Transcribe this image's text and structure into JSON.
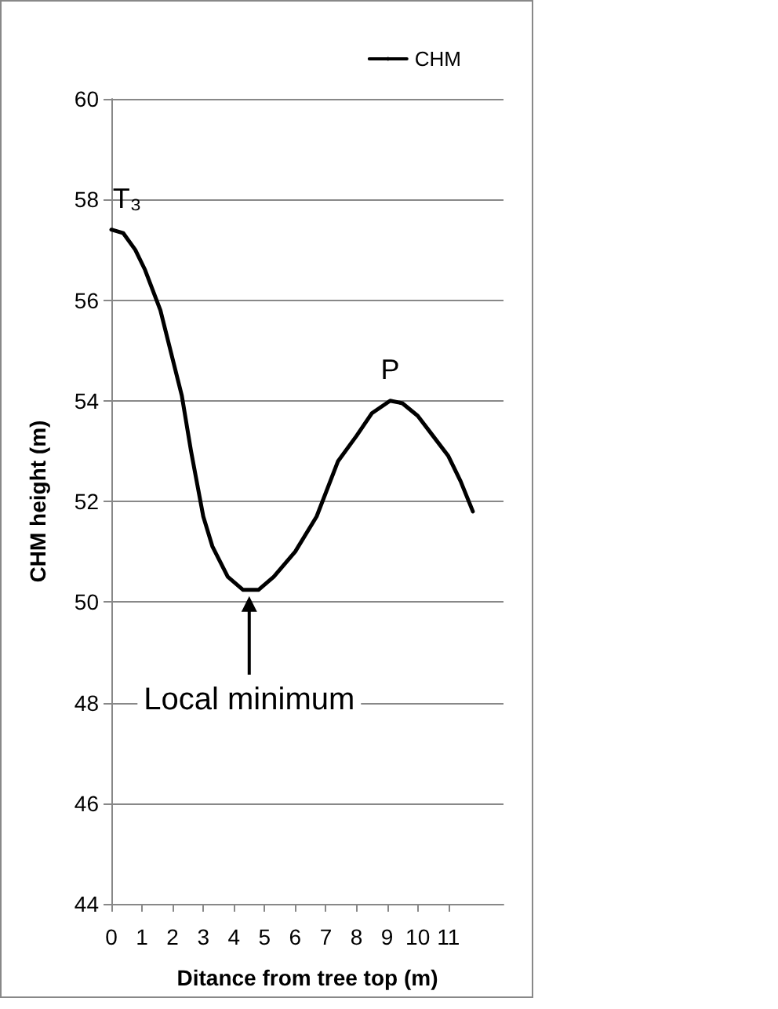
{
  "chart_data": {
    "type": "line",
    "xlabel": "Ditance from tree top (m)",
    "ylabel": "CHM height (m)",
    "x": [
      0,
      0.39,
      0.78,
      1.1,
      1.6,
      2.3,
      2.6,
      3.0,
      3.3,
      3.8,
      4.3,
      4.8,
      5.3,
      6.0,
      6.7,
      7.4,
      8.0,
      8.5,
      9.1,
      9.5,
      10.0,
      10.5,
      11.0,
      11.4,
      11.8
    ],
    "series": [
      {
        "name": "CHM",
        "color": "#000000",
        "values": [
          57.4,
          57.33,
          57.0,
          56.6,
          55.8,
          54.1,
          53.0,
          51.7,
          51.1,
          50.5,
          50.24,
          50.24,
          50.5,
          51.0,
          51.7,
          52.8,
          53.3,
          53.75,
          54.0,
          53.95,
          53.7,
          53.3,
          52.9,
          52.4,
          51.8
        ]
      }
    ],
    "xlim": [
      0,
      12.8
    ],
    "xticks": [
      0,
      1,
      2,
      3,
      4,
      5,
      6,
      7,
      8,
      9,
      10,
      11
    ],
    "ylim": [
      44,
      60
    ],
    "yticks": [
      44,
      46,
      48,
      50,
      52,
      54,
      56,
      58,
      60
    ],
    "grid": "y",
    "legend": "top right",
    "marker": "none",
    "line_style": "solid",
    "annotations": [
      {
        "text": "T₃",
        "x": 0,
        "y": 57.4
      },
      {
        "text": "P",
        "x": 9.1,
        "y": 54.0
      },
      {
        "text": "Local minimum",
        "x": 4.5,
        "y": 50.24
      }
    ]
  }
}
